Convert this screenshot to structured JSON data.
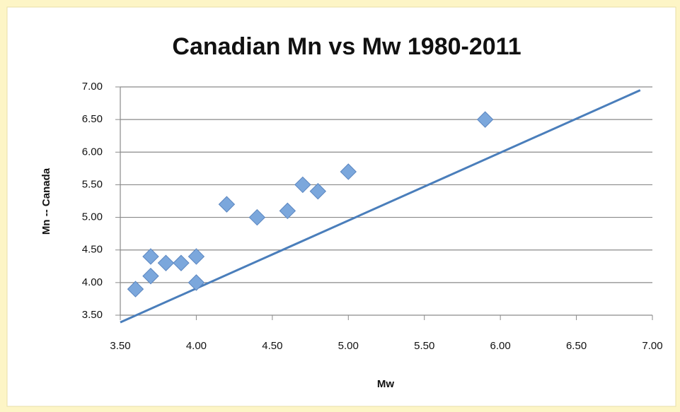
{
  "chart_data": {
    "type": "scatter",
    "title": "Canadian Mn vs Mw 1980-2011",
    "x_label": "Mw",
    "y_label": "Mn -- Canada",
    "xlim": [
      3.5,
      7.0
    ],
    "ylim": [
      3.5,
      7.0
    ],
    "xticks": [
      {
        "value": 3.5,
        "label": "3.50"
      },
      {
        "value": 4.0,
        "label": "4.00"
      },
      {
        "value": 4.5,
        "label": "4.50"
      },
      {
        "value": 5.0,
        "label": "5.00"
      },
      {
        "value": 5.5,
        "label": "5.50"
      },
      {
        "value": 6.0,
        "label": "6.00"
      },
      {
        "value": 6.5,
        "label": "6.50"
      },
      {
        "value": 7.0,
        "label": "7.00"
      }
    ],
    "yticks": [
      {
        "value": 3.5,
        "label": "3.50"
      },
      {
        "value": 4.0,
        "label": "4.00"
      },
      {
        "value": 4.5,
        "label": "4.50"
      },
      {
        "value": 5.0,
        "label": "5.00"
      },
      {
        "value": 5.5,
        "label": "5.50"
      },
      {
        "value": 6.0,
        "label": "6.00"
      },
      {
        "value": 6.5,
        "label": "6.50"
      },
      {
        "value": 7.0,
        "label": "7.00"
      }
    ],
    "grid": true,
    "series": [
      {
        "color": "#7ba7dc",
        "x": [
          3.6,
          3.7,
          3.7,
          3.8,
          3.9,
          4.0,
          4.0,
          4.2,
          4.4,
          4.6,
          4.7,
          4.8,
          5.0,
          5.9
        ],
        "values": [
          3.9,
          4.4,
          4.1,
          4.3,
          4.3,
          4.4,
          4.0,
          5.2,
          5.0,
          5.1,
          5.5,
          5.4,
          5.7,
          6.5
        ]
      }
    ],
    "line": {
      "color": "#4a7ebb",
      "x": [
        3.5,
        6.92
      ],
      "values": [
        3.39,
        6.95
      ]
    }
  }
}
